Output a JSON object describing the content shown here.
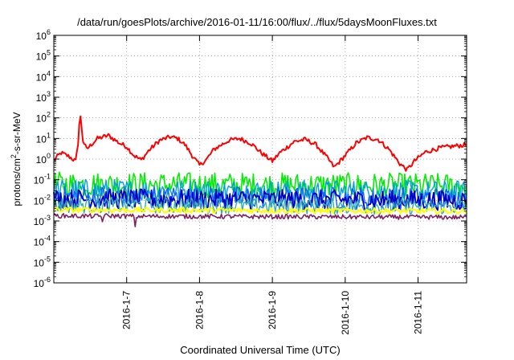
{
  "chart_data": {
    "type": "line",
    "title": "/data/run/goesPlots/archive/2016-01-11/16:00/flux/../flux/5daysMoonFluxes.txt",
    "xlabel": "Coordinated Universal Time (UTC)",
    "ylabel_parts": [
      "protons/cm",
      "2",
      "-s-sr-MeV"
    ],
    "yscale": "log",
    "ylim": [
      1e-06,
      1000000.0
    ],
    "yticks": [
      {
        "base": "10",
        "exp": "6"
      },
      {
        "base": "10",
        "exp": "5"
      },
      {
        "base": "10",
        "exp": "4"
      },
      {
        "base": "10",
        "exp": "3"
      },
      {
        "base": "10",
        "exp": "2"
      },
      {
        "base": "10",
        "exp": "1"
      },
      {
        "base": "10",
        "exp": "0"
      },
      {
        "base": "10",
        "exp": "-1"
      },
      {
        "base": "10",
        "exp": "-2"
      },
      {
        "base": "10",
        "exp": "-3"
      },
      {
        "base": "10",
        "exp": "-4"
      },
      {
        "base": "10",
        "exp": "-5"
      },
      {
        "base": "10",
        "exp": "-6"
      }
    ],
    "xlim": [
      "2016-01-06 00:00",
      "2016-01-11 16:00"
    ],
    "xticks": [
      "2016-1-7",
      "2016-1-8",
      "2016-1-9",
      "2016-1-10",
      "2016-1-11"
    ],
    "grid": true,
    "series": [
      {
        "color": "#ff0000",
        "noise": 0.05,
        "lw": 2.0,
        "points": [
          [
            0.0,
            0.9
          ],
          [
            0.1,
            2.0
          ],
          [
            0.2,
            1.4
          ],
          [
            0.3,
            0.8
          ],
          [
            0.33,
            4.0
          ],
          [
            0.36,
            180
          ],
          [
            0.4,
            8
          ],
          [
            0.45,
            3
          ],
          [
            0.6,
            10
          ],
          [
            0.75,
            14
          ],
          [
            0.9,
            6
          ],
          [
            1.0,
            4
          ],
          [
            1.1,
            1.5
          ],
          [
            1.2,
            0.9
          ],
          [
            1.3,
            2.5
          ],
          [
            1.45,
            8
          ],
          [
            1.6,
            12
          ],
          [
            1.7,
            10
          ],
          [
            1.8,
            5
          ],
          [
            1.9,
            1.5
          ],
          [
            2.0,
            0.5
          ],
          [
            2.1,
            1.0
          ],
          [
            2.2,
            3
          ],
          [
            2.4,
            8
          ],
          [
            2.55,
            10
          ],
          [
            2.7,
            6
          ],
          [
            2.85,
            2
          ],
          [
            3.0,
            0.8
          ],
          [
            3.1,
            2
          ],
          [
            3.3,
            7
          ],
          [
            3.45,
            9
          ],
          [
            3.6,
            5
          ],
          [
            3.75,
            1.2
          ],
          [
            3.85,
            0.4
          ],
          [
            4.0,
            1.5
          ],
          [
            4.15,
            6
          ],
          [
            4.3,
            11
          ],
          [
            4.45,
            9
          ],
          [
            4.6,
            3
          ],
          [
            4.75,
            0.6
          ],
          [
            4.85,
            0.3
          ],
          [
            4.95,
            0.8
          ],
          [
            5.1,
            2.2
          ],
          [
            5.3,
            3.5
          ],
          [
            5.667,
            5
          ]
        ]
      },
      {
        "color": "#00ee00",
        "noise": 0.28,
        "lw": 1.6,
        "points": [
          [
            0,
            0.06
          ],
          [
            5.667,
            0.05
          ]
        ]
      },
      {
        "color": "#00a0e0",
        "noise": 0.26,
        "lw": 1.4,
        "points": [
          [
            0,
            0.03
          ],
          [
            5.667,
            0.025
          ]
        ]
      },
      {
        "color": "#1060ff",
        "noise": 0.25,
        "lw": 1.4,
        "points": [
          [
            0,
            0.015
          ],
          [
            5.667,
            0.012
          ]
        ]
      },
      {
        "color": "#0000c0",
        "noise": 0.22,
        "lw": 1.8,
        "points": [
          [
            0,
            0.012
          ],
          [
            5.667,
            0.01
          ]
        ]
      },
      {
        "color": "#30b0b0",
        "noise": 0.18,
        "lw": 1.4,
        "points": [
          [
            0,
            0.006
          ],
          [
            5.667,
            0.005
          ]
        ]
      },
      {
        "color": "#ffff00",
        "noise": 0.06,
        "lw": 2.0,
        "points": [
          [
            0,
            0.0035
          ],
          [
            5.667,
            0.003
          ]
        ]
      },
      {
        "color": "#802060",
        "noise": 0.05,
        "lw": 1.6,
        "points": [
          [
            0,
            0.0018
          ],
          [
            0.65,
            0.0017
          ],
          [
            0.66,
            0.0006
          ],
          [
            0.68,
            0.0018
          ],
          [
            1.1,
            0.0017
          ],
          [
            1.12,
            0.0005
          ],
          [
            1.14,
            0.0017
          ],
          [
            5.667,
            0.0015
          ]
        ]
      }
    ]
  }
}
